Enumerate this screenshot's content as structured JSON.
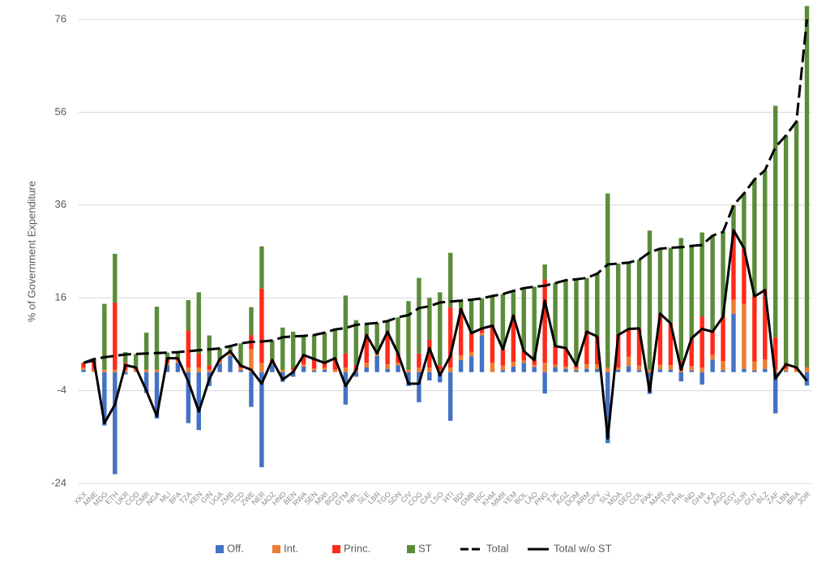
{
  "chart_data": {
    "type": "bar",
    "stacked": true,
    "y_label": "% of Government Expenditure",
    "ylim": [
      -24,
      80
    ],
    "yticks": [
      -24,
      -4,
      16,
      36,
      56,
      76
    ],
    "grid": true,
    "legend": "bottom",
    "categories": [
      "XKX",
      "MNE",
      "MDG",
      "ETH",
      "UKR",
      "COD",
      "CMR",
      "NGA",
      "MLI",
      "BFA",
      "TZA",
      "KEN",
      "GIN",
      "UGA",
      "ZMB",
      "TCD",
      "ZWE",
      "NER",
      "MOZ",
      "HND",
      "BEN",
      "RWA",
      "SEN",
      "MWI",
      "BGD",
      "GTM",
      "NPL",
      "SLE",
      "LBR",
      "TGO",
      "SDN",
      "CIV",
      "COG",
      "CAF",
      "LSO",
      "HTI",
      "BDI",
      "GMB",
      "NIC",
      "KHM",
      "MMR",
      "YEM",
      "BOL",
      "LAO",
      "PNG",
      "TJK",
      "KGZ",
      "DOM",
      "ARM",
      "CPV",
      "SLV",
      "MDA",
      "GEO",
      "COL",
      "PAK",
      "MAR",
      "TUN",
      "PHL",
      "IND",
      "GHA",
      "LKA",
      "AGO",
      "EGY",
      "SUR",
      "GUY",
      "BLZ",
      "ZAF",
      "LBN",
      "BRA",
      "JOR"
    ],
    "series": [
      {
        "name": "Off.",
        "type": "bar",
        "color": "#4472c4",
        "values": [
          0.5,
          0,
          -11.5,
          -22,
          -0.5,
          0,
          -4.5,
          -10,
          1.5,
          2,
          -11,
          -12.5,
          -3,
          1.8,
          3.5,
          0.4,
          -7.5,
          -20.5,
          1.6,
          -2.1,
          -1,
          1.2,
          0.3,
          0.5,
          0,
          -7,
          -1,
          1,
          3.5,
          0.7,
          1.5,
          -3,
          -6.5,
          -1.8,
          -2.2,
          -10.5,
          2.6,
          3.4,
          7.9,
          0,
          0.4,
          1.2,
          2,
          1.1,
          -4.6,
          1.1,
          0.7,
          0.4,
          0.7,
          0.7,
          -15.3,
          0.5,
          1.3,
          0.4,
          -4.7,
          0.6,
          0.5,
          -2,
          0.3,
          -2.7,
          2.7,
          0.4,
          12.6,
          0.7,
          0.3,
          0.7,
          -8.9,
          0.2,
          0,
          -2.9
        ]
      },
      {
        "name": "Int.",
        "type": "bar",
        "color": "#ed7d31",
        "values": [
          0.5,
          0.5,
          0.5,
          0.5,
          0.5,
          0.5,
          0.5,
          0.5,
          0.5,
          0.5,
          1,
          1,
          0.5,
          0.5,
          0.5,
          0.5,
          5,
          2,
          0.5,
          0.5,
          0.5,
          0.5,
          0.5,
          0.5,
          0.5,
          1,
          0.5,
          1,
          0.5,
          1,
          0.5,
          0.5,
          1,
          1,
          0.5,
          1,
          1,
          1,
          0.5,
          2,
          1,
          1,
          0.5,
          0.5,
          2,
          0.5,
          0.5,
          0.5,
          1,
          1,
          1,
          0.5,
          2,
          1,
          0.5,
          1,
          1,
          0.5,
          1,
          1,
          1,
          2,
          3,
          14,
          2,
          2,
          0.5,
          0.5,
          0.5,
          1
        ]
      },
      {
        "name": "Princ.",
        "type": "bar",
        "color": "#ff2a1a",
        "values": [
          1,
          2,
          0,
          14.5,
          1.5,
          0.5,
          0,
          0,
          1,
          0.5,
          8,
          3,
          1,
          0.5,
          0.5,
          0.5,
          3,
          16,
          0.5,
          0,
          0.5,
          2,
          2,
          1,
          2.5,
          3,
          1,
          6,
          0,
          7,
          2,
          0,
          3,
          6,
          1,
          13,
          10,
          4,
          1,
          8,
          3.5,
          10,
          2,
          1,
          18,
          4,
          4,
          0.5,
          7,
          6,
          0,
          7,
          6,
          8,
          0,
          11,
          9,
          2,
          6,
          11,
          5,
          9.5,
          15,
          12,
          14,
          15,
          7,
          1,
          0.5,
          0
        ]
      },
      {
        "name": "ST",
        "type": "bar",
        "color": "#5b8c3a",
        "values": [
          0,
          0.3,
          14.2,
          10.5,
          2.3,
          2.9,
          8,
          13.6,
          1.2,
          1.3,
          6.5,
          13.2,
          6.4,
          2.3,
          1.1,
          4.8,
          6,
          9.1,
          4.2,
          9.1,
          7.7,
          4.1,
          5.2,
          6.5,
          6.2,
          12.5,
          9.7,
          2.4,
          6.6,
          2.3,
          7.8,
          14.8,
          16.3,
          9,
          15.7,
          11.7,
          1.8,
          7.2,
          6.5,
          6.4,
          11.9,
          5.3,
          13.6,
          15.8,
          3.2,
          13.6,
          14.6,
          18.6,
          11.6,
          13.5,
          37.5,
          15.4,
          14.3,
          14.8,
          30,
          14,
          16.3,
          26.4,
          19.9,
          18.1,
          20.7,
          18.3,
          5.4,
          11.8,
          25.2,
          25.8,
          49.9,
          49.3,
          53,
          77.9
        ]
      },
      {
        "name": "Total",
        "type": "line",
        "dashed": true,
        "color": "#000000",
        "values": [
          2,
          2.8,
          3.2,
          3.5,
          3.8,
          3.9,
          4,
          4.1,
          4.2,
          4.3,
          4.5,
          4.7,
          4.9,
          5.1,
          5.6,
          6.2,
          6.5,
          6.6,
          6.8,
          7.5,
          7.7,
          7.8,
          8,
          8.5,
          9.2,
          9.5,
          10.2,
          10.4,
          10.6,
          11,
          11.8,
          12.3,
          13.8,
          14.2,
          15,
          15.2,
          15.4,
          15.6,
          15.9,
          16.4,
          16.8,
          17.5,
          18.1,
          18.4,
          18.6,
          19.2,
          19.8,
          20,
          20.3,
          21.2,
          23.2,
          23.4,
          23.6,
          24.2,
          25.8,
          26.6,
          26.8,
          26.9,
          27.2,
          27.4,
          29.4,
          30.2,
          36,
          38.5,
          41.5,
          43.5,
          48.5,
          51,
          54,
          76
        ]
      },
      {
        "name": "Total w/o ST",
        "type": "line",
        "dashed": false,
        "color": "#000000",
        "values": [
          2,
          2.5,
          -11,
          -7,
          1.5,
          1,
          -4,
          -9.5,
          3,
          3,
          -2,
          -8.5,
          -1.5,
          2.8,
          4.5,
          1.4,
          0.5,
          -2.5,
          2.6,
          -1.6,
          0,
          3.7,
          2.8,
          2,
          3,
          -3,
          0.5,
          8,
          4,
          8.7,
          4,
          -2.5,
          -2.5,
          5.2,
          -0.7,
          3.5,
          13.6,
          8.4,
          9.4,
          10,
          4.9,
          12.2,
          4.5,
          2.6,
          15.4,
          5.6,
          5.2,
          1.4,
          8.7,
          7.7,
          -14.3,
          8,
          9.3,
          9.4,
          -4.2,
          12.6,
          10.5,
          0.5,
          7.3,
          9.3,
          8.7,
          11.9,
          30.6,
          26.7,
          16.3,
          17.7,
          -1.4,
          1.7,
          1,
          -1.9
        ]
      }
    ]
  }
}
